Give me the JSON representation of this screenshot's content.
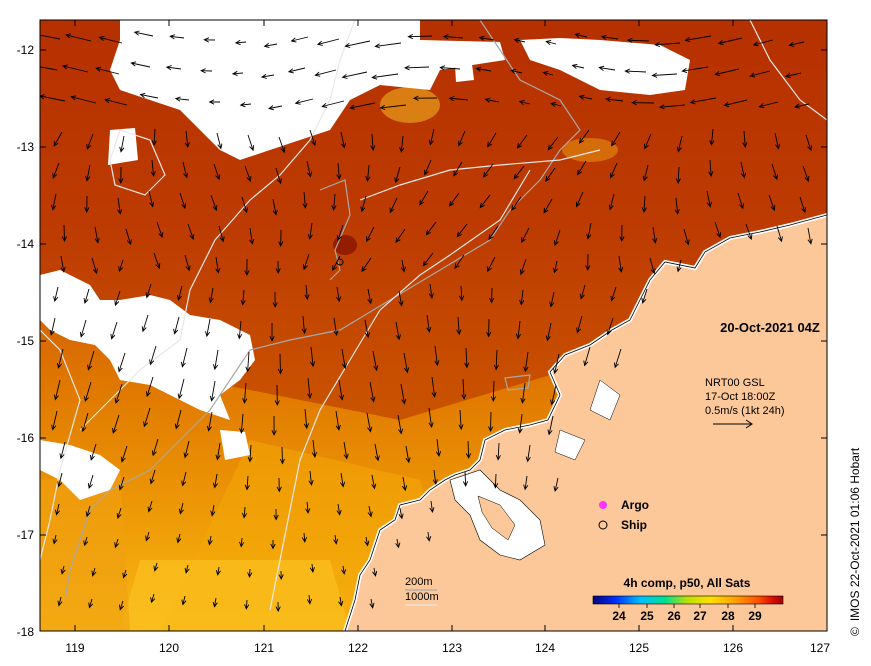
{
  "map": {
    "date_label": "20-Oct-2021 04Z",
    "current_info": {
      "line1": "NRT00 GSL",
      "line2": "17-Oct 18:00Z",
      "line3": "0.5m/s (1kt 24h)"
    },
    "legend": {
      "argo": "Argo",
      "ship": "Ship",
      "argo_color": "#ff33ff"
    },
    "contours": {
      "c200": "200m",
      "c1000": "1000m"
    },
    "colorbar": {
      "title": "4h comp, p50, All Sats",
      "ticks": [
        "24",
        "25",
        "26",
        "27",
        "28",
        "29"
      ],
      "range": [
        23.2,
        30.1
      ],
      "colors": [
        "#000080",
        "#0030ff",
        "#00c0ff",
        "#00e090",
        "#c0e000",
        "#ffe000",
        "#ffa000",
        "#ff5000",
        "#e01000",
        "#a00000"
      ]
    },
    "credit": "IMOS 22-Oct-2021 01:06 Hobart",
    "copyright_symbol": "©",
    "x_axis": {
      "ticks": [
        "119",
        "120",
        "121",
        "122",
        "123",
        "124",
        "125",
        "126",
        "127"
      ],
      "range": [
        118.65,
        127.0
      ]
    },
    "y_axis": {
      "ticks": [
        "-12",
        "-13",
        "-14",
        "-15",
        "-16",
        "-17",
        "-18"
      ],
      "range": [
        -11.75,
        -18.0
      ]
    },
    "colors": {
      "ocean_main": "#c04808",
      "ocean_dark": "#a02000",
      "ocean_warm": "#e88000",
      "ocean_yellow": "#f5b010",
      "land": "#fcc89a",
      "cloud": "#ffffff"
    }
  }
}
